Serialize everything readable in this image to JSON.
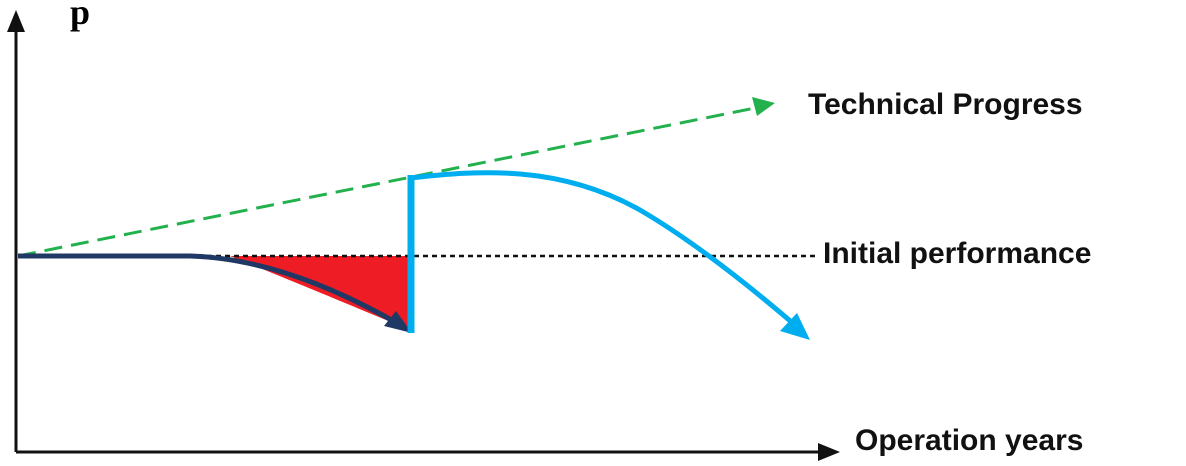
{
  "diagram": {
    "top_label": "p",
    "labels": {
      "technical_progress": "Technical Progress",
      "initial_performance": "Initial performance",
      "operation_years": "Operation years"
    }
  },
  "colors": {
    "axes": "#111111",
    "technical_progress_line": "#22b14c",
    "initial_performance_line": "#111111",
    "degradation_curve": "#1f3864",
    "performance_loss_area": "#ee1c24",
    "post_upgrade_curve": "#00aeef"
  }
}
